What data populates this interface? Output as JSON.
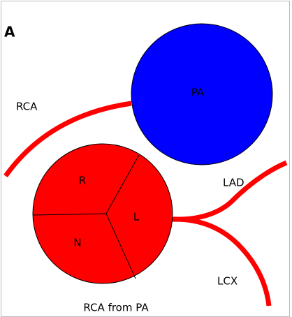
{
  "panel_label": "A",
  "vessels": {
    "pa": "PA"
  },
  "sinuses": {
    "right": "R",
    "left": "L",
    "non_coronary": "N"
  },
  "coronaries": {
    "rca": "RCA",
    "lad": "LAD",
    "lcx": "LCX"
  },
  "caption": "RCA from PA"
}
